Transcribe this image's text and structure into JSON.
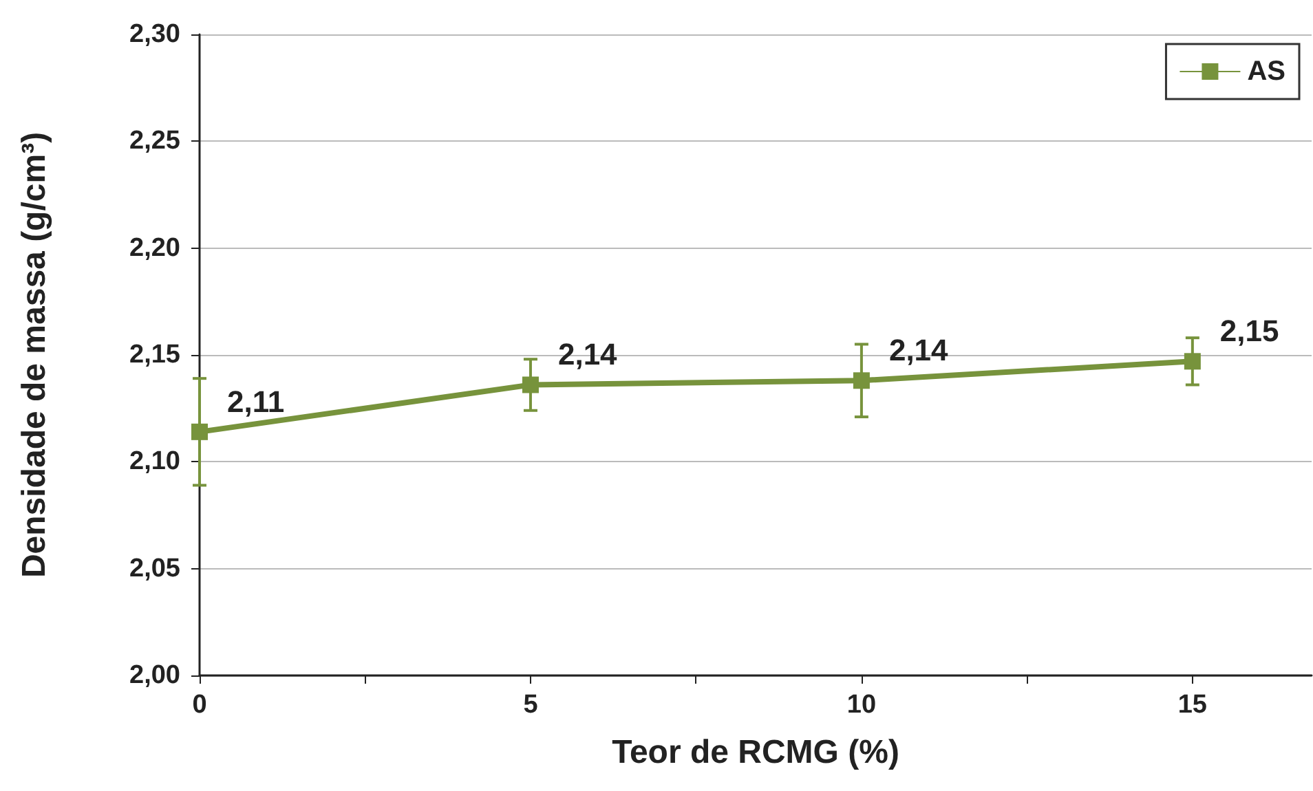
{
  "chart_data": {
    "type": "line",
    "xlabel": "Teor de RCMG (%)",
    "ylabel": "Densidade de massa (g/cm³)",
    "x": [
      0,
      5,
      10,
      15
    ],
    "series": [
      {
        "name": "AS",
        "color": "#77933c",
        "values": [
          2.114,
          2.136,
          2.138,
          2.147
        ],
        "errors": [
          0.025,
          0.012,
          0.017,
          0.011
        ],
        "value_labels": [
          "2,11",
          "2,14",
          "2,14",
          "2,15"
        ]
      }
    ],
    "xlim": [
      0,
      16.8
    ],
    "xticks": [
      0,
      {
        "value": 2.5,
        "label": null
      },
      5,
      {
        "value": 7.5,
        "label": null
      },
      10,
      {
        "value": 12.5,
        "label": null
      },
      15
    ],
    "ylim": [
      2.0,
      2.3
    ],
    "yticks": [
      {
        "value": 2.0,
        "label": "2,00"
      },
      {
        "value": 2.05,
        "label": "2,05"
      },
      {
        "value": 2.1,
        "label": "2,10"
      },
      {
        "value": 2.15,
        "label": "2,15"
      },
      {
        "value": 2.2,
        "label": "2,20"
      },
      {
        "value": 2.25,
        "label": "2,25"
      },
      {
        "value": 2.3,
        "label": "2,30"
      }
    ],
    "grid": "y",
    "legend": "top right",
    "marker": "square",
    "line_style": "solid"
  }
}
